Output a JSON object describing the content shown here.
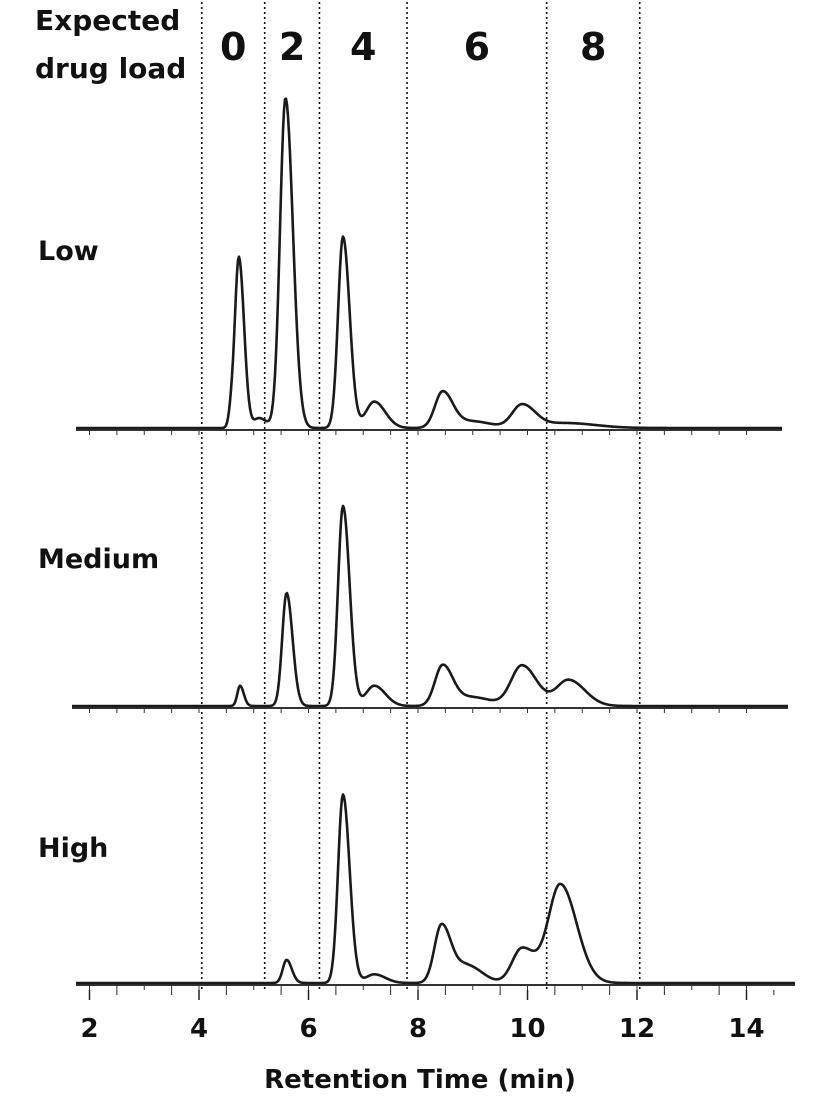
{
  "chart_data": {
    "type": "line",
    "title": "",
    "header_label": [
      "Expected",
      "drug load"
    ],
    "xlabel": "Retention Time (min)",
    "ylabel": "",
    "xlim": [
      1.8,
      14.8
    ],
    "x_ticks": [
      2,
      4,
      6,
      8,
      10,
      12,
      14
    ],
    "grid": false,
    "drug_load_regions": [
      {
        "label": "0",
        "start": 4.05,
        "end": 5.2
      },
      {
        "label": "2",
        "start": 5.2,
        "end": 6.2
      },
      {
        "label": "4",
        "start": 6.2,
        "end": 7.8
      },
      {
        "label": "6",
        "start": 7.8,
        "end": 10.35
      },
      {
        "label": "8",
        "start": 10.35,
        "end": 12.05
      }
    ],
    "boundaries": [
      4.05,
      5.2,
      6.2,
      7.8,
      10.35,
      12.05
    ],
    "series": [
      {
        "name": "Low",
        "peaks": [
          {
            "x": 4.6,
            "height": 0.06,
            "width": 0.05
          },
          {
            "x": 4.73,
            "height": 0.51,
            "width": 0.07
          },
          {
            "x": 5.1,
            "height": 0.03,
            "width": 0.1
          },
          {
            "x": 5.58,
            "height": 1.0,
            "width": 0.1
          },
          {
            "x": 6.63,
            "height": 0.58,
            "width": 0.09
          },
          {
            "x": 7.2,
            "height": 0.08,
            "width": 0.15
          },
          {
            "x": 8.45,
            "height": 0.11,
            "width": 0.14
          },
          {
            "x": 9.0,
            "height": 0.02,
            "width": 0.25
          },
          {
            "x": 9.9,
            "height": 0.07,
            "width": 0.18
          },
          {
            "x": 10.7,
            "height": 0.015,
            "width": 0.4
          }
        ]
      },
      {
        "name": "Medium",
        "peaks": [
          {
            "x": 4.75,
            "height": 0.07,
            "width": 0.05
          },
          {
            "x": 5.6,
            "height": 0.39,
            "width": 0.08
          },
          {
            "x": 6.63,
            "height": 0.69,
            "width": 0.09
          },
          {
            "x": 7.2,
            "height": 0.07,
            "width": 0.15
          },
          {
            "x": 8.45,
            "height": 0.14,
            "width": 0.14
          },
          {
            "x": 9.0,
            "height": 0.03,
            "width": 0.25
          },
          {
            "x": 9.9,
            "height": 0.14,
            "width": 0.2
          },
          {
            "x": 10.75,
            "height": 0.09,
            "width": 0.22
          }
        ]
      },
      {
        "name": "High",
        "peaks": [
          {
            "x": 5.6,
            "height": 0.08,
            "width": 0.07
          },
          {
            "x": 6.63,
            "height": 0.65,
            "width": 0.09
          },
          {
            "x": 7.2,
            "height": 0.03,
            "width": 0.15
          },
          {
            "x": 8.43,
            "height": 0.2,
            "width": 0.13
          },
          {
            "x": 8.9,
            "height": 0.06,
            "width": 0.2
          },
          {
            "x": 9.9,
            "height": 0.12,
            "width": 0.18
          },
          {
            "x": 10.6,
            "height": 0.34,
            "width": 0.22
          }
        ]
      }
    ]
  }
}
